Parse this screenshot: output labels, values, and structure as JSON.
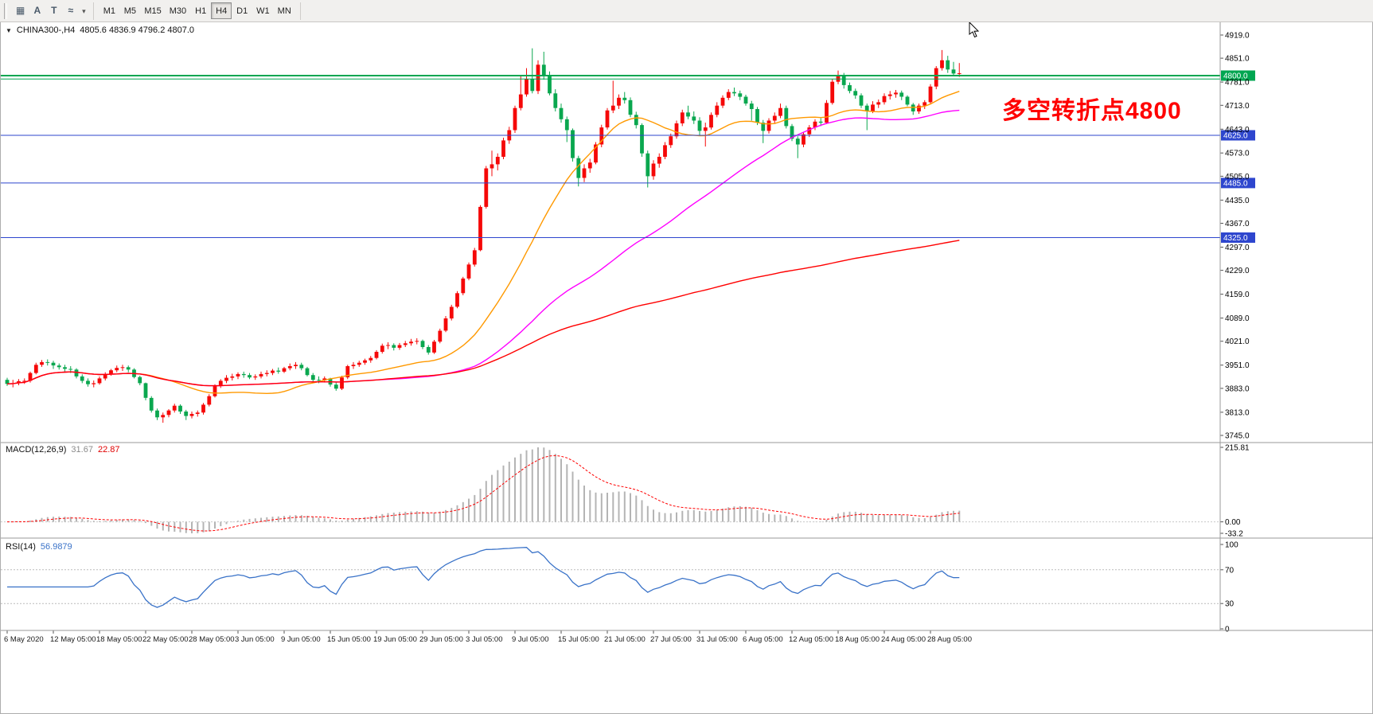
{
  "toolbar": {
    "icons": [
      {
        "name": "tile-windows-icon",
        "glyph": "▦"
      },
      {
        "name": "font-tool-icon",
        "glyph": "A"
      },
      {
        "name": "text-tool-icon",
        "glyph": "T"
      },
      {
        "name": "indicators-icon",
        "glyph": "≈"
      }
    ],
    "dropdown_glyph": "▾",
    "timeframes": [
      "M1",
      "M5",
      "M15",
      "M30",
      "H1",
      "H4",
      "D1",
      "W1",
      "MN"
    ],
    "active_timeframe": "H4"
  },
  "chart": {
    "title_marker": "▼",
    "symbol_label": "CHINA300-,H4",
    "ohlc_label": "4805.6 4836.9 4796.2 4807.0",
    "annotation": {
      "text": "多空转折点4800",
      "color": "#FF0000"
    }
  },
  "macd": {
    "name_label": "MACD(12,26,9)",
    "value_main": "31.67",
    "value_signal": "22.87",
    "axis_ticks": [
      "215.81",
      "0.00",
      "-33.2"
    ]
  },
  "rsi": {
    "name_label": "RSI(14)",
    "value": "56.9879",
    "axis_ticks": [
      "100",
      "70",
      "30",
      "0"
    ],
    "line_color": "#3972C8"
  },
  "chart_data": {
    "type": "candlestick",
    "symbol": "CHINA300",
    "timeframe": "H4",
    "current_bar": {
      "open": 4805.6,
      "high": 4836.9,
      "low": 4796.2,
      "close": 4807.0
    },
    "ylim": [
      3726,
      4944
    ],
    "y_ticks": [
      4919,
      4851,
      4781,
      4713,
      4643,
      4573,
      4505,
      4435,
      4367,
      4297,
      4229,
      4159,
      4089,
      4021,
      3951,
      3883,
      3813,
      3745
    ],
    "levels": [
      {
        "value": 4800,
        "color": "#00A651",
        "width": 2,
        "badge": "4800.0"
      },
      {
        "value": 4790,
        "color": "#00A651",
        "width": 1
      },
      {
        "value": 4625,
        "color": "#2E46CE",
        "width": 1,
        "badge": "4625.0"
      },
      {
        "value": 4485,
        "color": "#2E46CE",
        "width": 1,
        "badge": "4485.0"
      },
      {
        "value": 4325,
        "color": "#2E46CE",
        "width": 1,
        "badge": "4325.0"
      }
    ],
    "candle_colors": {
      "bull": "#F50808",
      "bear": "#0AA74F"
    },
    "moving_averages": [
      {
        "name": "MA-fast",
        "period": 24,
        "color": "#FF9900"
      },
      {
        "name": "MA-mid",
        "period": 60,
        "color": "#FF00FF"
      },
      {
        "name": "MA-slow",
        "period": 420,
        "color": "#FF0000"
      }
    ],
    "indicators": [
      {
        "type": "MACD",
        "params": [
          12,
          26,
          9
        ],
        "current": [
          31.67,
          22.87
        ],
        "scale_max": 215.81,
        "scale_min": -33.2,
        "histogram_color": "#B4B4B4",
        "signal_color": "#FF0000"
      },
      {
        "type": "RSI",
        "params": [
          14
        ],
        "current": 56.9879,
        "levels": [
          70,
          30
        ]
      }
    ],
    "label_every_bars": 8,
    "x_labels": [
      "6 May 2020",
      "12 May 05:00",
      "18 May 05:00",
      "22 May 05:00",
      "28 May 05:00",
      "3 Jun 05:00",
      "9 Jun 05:00",
      "15 Jun 05:00",
      "19 Jun 05:00",
      "29 Jun 05:00",
      "3 Jul 05:00",
      "9 Jul 05:00",
      "15 Jul 05:00",
      "21 Jul 05:00",
      "27 Jul 05:00",
      "31 Jul 05:00",
      "6 Aug 05:00",
      "12 Aug 05:00",
      "18 Aug 05:00",
      "24 Aug 05:00",
      "28 Aug 05:00"
    ],
    "candles": [
      [
        3908,
        3914,
        3890,
        3896
      ],
      [
        3896,
        3908,
        3886,
        3898
      ],
      [
        3898,
        3910,
        3892,
        3904
      ],
      [
        3904,
        3912,
        3896,
        3905
      ],
      [
        3905,
        3932,
        3900,
        3928
      ],
      [
        3928,
        3958,
        3924,
        3952
      ],
      [
        3952,
        3966,
        3946,
        3960
      ],
      [
        3960,
        3968,
        3950,
        3958
      ],
      [
        3958,
        3964,
        3940,
        3950
      ],
      [
        3950,
        3956,
        3938,
        3945
      ],
      [
        3945,
        3952,
        3932,
        3940
      ],
      [
        3940,
        3948,
        3928,
        3938
      ],
      [
        3938,
        3942,
        3912,
        3918
      ],
      [
        3918,
        3924,
        3898,
        3905
      ],
      [
        3905,
        3912,
        3888,
        3895
      ],
      [
        3895,
        3906,
        3886,
        3898
      ],
      [
        3898,
        3918,
        3894,
        3912
      ],
      [
        3912,
        3930,
        3906,
        3925
      ],
      [
        3925,
        3940,
        3920,
        3936
      ],
      [
        3936,
        3950,
        3930,
        3943
      ],
      [
        3943,
        3952,
        3934,
        3945
      ],
      [
        3945,
        3950,
        3930,
        3938
      ],
      [
        3938,
        3942,
        3912,
        3916
      ],
      [
        3916,
        3920,
        3892,
        3898
      ],
      [
        3898,
        3900,
        3848,
        3855
      ],
      [
        3855,
        3860,
        3812,
        3818
      ],
      [
        3818,
        3824,
        3790,
        3798
      ],
      [
        3798,
        3812,
        3782,
        3805
      ],
      [
        3805,
        3822,
        3798,
        3818
      ],
      [
        3818,
        3838,
        3812,
        3832
      ],
      [
        3832,
        3836,
        3808,
        3815
      ],
      [
        3815,
        3820,
        3790,
        3802
      ],
      [
        3802,
        3815,
        3795,
        3808
      ],
      [
        3808,
        3818,
        3800,
        3812
      ],
      [
        3812,
        3840,
        3806,
        3835
      ],
      [
        3835,
        3866,
        3830,
        3860
      ],
      [
        3860,
        3895,
        3856,
        3890
      ],
      [
        3890,
        3910,
        3884,
        3905
      ],
      [
        3905,
        3922,
        3898,
        3914
      ],
      [
        3914,
        3926,
        3906,
        3918
      ],
      [
        3918,
        3930,
        3910,
        3925
      ],
      [
        3925,
        3932,
        3914,
        3922
      ],
      [
        3922,
        3928,
        3910,
        3915
      ],
      [
        3915,
        3924,
        3908,
        3918
      ],
      [
        3918,
        3932,
        3912,
        3925
      ],
      [
        3925,
        3936,
        3918,
        3928
      ],
      [
        3928,
        3940,
        3922,
        3935
      ],
      [
        3935,
        3944,
        3926,
        3932
      ],
      [
        3932,
        3946,
        3928,
        3942
      ],
      [
        3942,
        3956,
        3936,
        3948
      ],
      [
        3948,
        3960,
        3940,
        3952
      ],
      [
        3952,
        3958,
        3936,
        3942
      ],
      [
        3942,
        3946,
        3918,
        3922
      ],
      [
        3922,
        3928,
        3902,
        3908
      ],
      [
        3908,
        3918,
        3898,
        3906
      ],
      [
        3906,
        3918,
        3900,
        3912
      ],
      [
        3912,
        3914,
        3888,
        3894
      ],
      [
        3894,
        3900,
        3876,
        3882
      ],
      [
        3882,
        3920,
        3878,
        3915
      ],
      [
        3915,
        3952,
        3910,
        3948
      ],
      [
        3948,
        3960,
        3940,
        3952
      ],
      [
        3952,
        3964,
        3946,
        3958
      ],
      [
        3958,
        3970,
        3952,
        3965
      ],
      [
        3965,
        3978,
        3958,
        3972
      ],
      [
        3972,
        3995,
        3968,
        3990
      ],
      [
        3990,
        4014,
        3985,
        4008
      ],
      [
        4008,
        4018,
        3998,
        4010
      ],
      [
        4010,
        4015,
        3994,
        4002
      ],
      [
        4002,
        4016,
        3996,
        4010
      ],
      [
        4010,
        4022,
        4004,
        4015
      ],
      [
        4015,
        4028,
        4008,
        4020
      ],
      [
        4020,
        4030,
        4012,
        4022
      ],
      [
        4022,
        4026,
        3998,
        4004
      ],
      [
        4004,
        4010,
        3982,
        3988
      ],
      [
        3988,
        4025,
        3984,
        4020
      ],
      [
        4020,
        4058,
        4015,
        4052
      ],
      [
        4052,
        4095,
        4048,
        4088
      ],
      [
        4088,
        4128,
        4082,
        4122
      ],
      [
        4122,
        4168,
        4118,
        4162
      ],
      [
        4162,
        4210,
        4156,
        4205
      ],
      [
        4205,
        4252,
        4200,
        4246
      ],
      [
        4246,
        4295,
        4240,
        4288
      ],
      [
        4288,
        4420,
        4285,
        4415
      ],
      [
        4415,
        4535,
        4410,
        4528
      ],
      [
        4528,
        4580,
        4505,
        4540
      ],
      [
        4540,
        4572,
        4522,
        4562
      ],
      [
        4562,
        4618,
        4555,
        4610
      ],
      [
        4610,
        4650,
        4600,
        4640
      ],
      [
        4640,
        4712,
        4632,
        4705
      ],
      [
        4705,
        4800,
        4698,
        4745
      ],
      [
        4745,
        4822,
        4738,
        4790
      ],
      [
        4790,
        4880,
        4748,
        4755
      ],
      [
        4755,
        4845,
        4746,
        4832
      ],
      [
        4832,
        4870,
        4788,
        4800
      ],
      [
        4800,
        4812,
        4742,
        4748
      ],
      [
        4748,
        4760,
        4695,
        4705
      ],
      [
        4705,
        4718,
        4662,
        4672
      ],
      [
        4672,
        4680,
        4605,
        4640
      ],
      [
        4640,
        4645,
        4548,
        4558
      ],
      [
        4558,
        4565,
        4475,
        4500
      ],
      [
        4500,
        4540,
        4488,
        4528
      ],
      [
        4528,
        4556,
        4515,
        4545
      ],
      [
        4545,
        4605,
        4540,
        4598
      ],
      [
        4598,
        4656,
        4590,
        4648
      ],
      [
        4648,
        4705,
        4642,
        4698
      ],
      [
        4698,
        4785,
        4690,
        4712
      ],
      [
        4712,
        4745,
        4702,
        4735
      ],
      [
        4735,
        4752,
        4718,
        4728
      ],
      [
        4728,
        4736,
        4678,
        4685
      ],
      [
        4685,
        4694,
        4645,
        4655
      ],
      [
        4655,
        4660,
        4562,
        4572
      ],
      [
        4572,
        4580,
        4472,
        4505
      ],
      [
        4505,
        4552,
        4495,
        4542
      ],
      [
        4542,
        4572,
        4530,
        4562
      ],
      [
        4562,
        4605,
        4555,
        4596
      ],
      [
        4596,
        4630,
        4588,
        4622
      ],
      [
        4622,
        4668,
        4615,
        4660
      ],
      [
        4660,
        4700,
        4652,
        4692
      ],
      [
        4692,
        4712,
        4672,
        4680
      ],
      [
        4680,
        4695,
        4658,
        4668
      ],
      [
        4668,
        4678,
        4625,
        4638
      ],
      [
        4638,
        4662,
        4592,
        4648
      ],
      [
        4648,
        4692,
        4642,
        4685
      ],
      [
        4685,
        4722,
        4678,
        4712
      ],
      [
        4712,
        4742,
        4705,
        4735
      ],
      [
        4735,
        4760,
        4728,
        4752
      ],
      [
        4752,
        4765,
        4740,
        4748
      ],
      [
        4748,
        4756,
        4728,
        4738
      ],
      [
        4738,
        4744,
        4712,
        4718
      ],
      [
        4718,
        4726,
        4668,
        4702
      ],
      [
        4702,
        4708,
        4655,
        4662
      ],
      [
        4662,
        4670,
        4602,
        4638
      ],
      [
        4638,
        4675,
        4630,
        4668
      ],
      [
        4668,
        4692,
        4660,
        4682
      ],
      [
        4682,
        4718,
        4675,
        4705
      ],
      [
        4705,
        4712,
        4645,
        4652
      ],
      [
        4652,
        4658,
        4608,
        4615
      ],
      [
        4615,
        4622,
        4558,
        4598
      ],
      [
        4598,
        4635,
        4590,
        4628
      ],
      [
        4628,
        4655,
        4620,
        4648
      ],
      [
        4648,
        4672,
        4640,
        4665
      ],
      [
        4665,
        4675,
        4652,
        4662
      ],
      [
        4662,
        4728,
        4658,
        4720
      ],
      [
        4720,
        4790,
        4715,
        4782
      ],
      [
        4782,
        4815,
        4775,
        4798
      ],
      [
        4798,
        4808,
        4762,
        4772
      ],
      [
        4772,
        4780,
        4748,
        4755
      ],
      [
        4755,
        4762,
        4732,
        4742
      ],
      [
        4742,
        4748,
        4705,
        4712
      ],
      [
        4712,
        4718,
        4640,
        4696
      ],
      [
        4696,
        4725,
        4690,
        4715
      ],
      [
        4715,
        4730,
        4705,
        4722
      ],
      [
        4722,
        4748,
        4715,
        4740
      ],
      [
        4740,
        4755,
        4730,
        4745
      ],
      [
        4745,
        4758,
        4735,
        4750
      ],
      [
        4750,
        4756,
        4728,
        4738
      ],
      [
        4738,
        4742,
        4710,
        4715
      ],
      [
        4715,
        4720,
        4685,
        4695
      ],
      [
        4695,
        4718,
        4688,
        4712
      ],
      [
        4712,
        4728,
        4702,
        4722
      ],
      [
        4722,
        4775,
        4716,
        4768
      ],
      [
        4768,
        4828,
        4760,
        4822
      ],
      [
        4822,
        4875,
        4815,
        4845
      ],
      [
        4845,
        4858,
        4808,
        4818
      ],
      [
        4818,
        4840,
        4800,
        4806
      ],
      [
        4805.6,
        4836.9,
        4796.2,
        4807.0
      ]
    ]
  }
}
